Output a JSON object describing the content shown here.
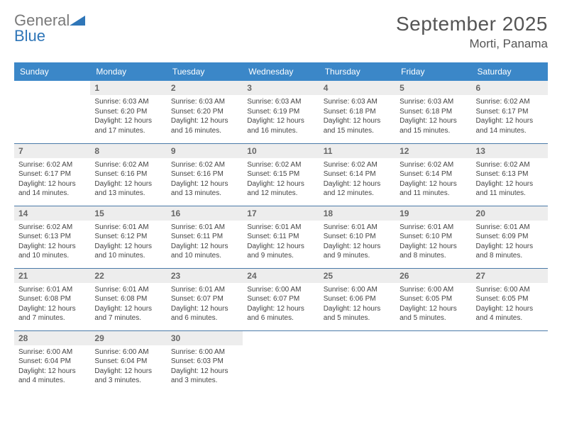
{
  "brand": {
    "name1": "General",
    "name2": "Blue"
  },
  "title": "September 2025",
  "location": "Morti, Panama",
  "colors": {
    "header_bg": "#3b87c8",
    "header_text": "#ffffff",
    "daynum_bg": "#ededed",
    "daynum_text": "#666666",
    "row_divider": "#4a7aa8",
    "brand_gray": "#7a7a7a",
    "brand_blue": "#2f76b8",
    "page_bg": "#ffffff",
    "body_text": "#444444"
  },
  "fonts": {
    "body_family": "Arial",
    "title_size_pt": 21,
    "location_size_pt": 13,
    "th_size_pt": 9,
    "daynum_size_pt": 9,
    "cell_size_pt": 7.5
  },
  "day_names": [
    "Sunday",
    "Monday",
    "Tuesday",
    "Wednesday",
    "Thursday",
    "Friday",
    "Saturday"
  ],
  "weeks": [
    [
      null,
      {
        "n": "1",
        "sr": "Sunrise: 6:03 AM",
        "ss": "Sunset: 6:20 PM",
        "dl": "Daylight: 12 hours and 17 minutes."
      },
      {
        "n": "2",
        "sr": "Sunrise: 6:03 AM",
        "ss": "Sunset: 6:20 PM",
        "dl": "Daylight: 12 hours and 16 minutes."
      },
      {
        "n": "3",
        "sr": "Sunrise: 6:03 AM",
        "ss": "Sunset: 6:19 PM",
        "dl": "Daylight: 12 hours and 16 minutes."
      },
      {
        "n": "4",
        "sr": "Sunrise: 6:03 AM",
        "ss": "Sunset: 6:18 PM",
        "dl": "Daylight: 12 hours and 15 minutes."
      },
      {
        "n": "5",
        "sr": "Sunrise: 6:03 AM",
        "ss": "Sunset: 6:18 PM",
        "dl": "Daylight: 12 hours and 15 minutes."
      },
      {
        "n": "6",
        "sr": "Sunrise: 6:02 AM",
        "ss": "Sunset: 6:17 PM",
        "dl": "Daylight: 12 hours and 14 minutes."
      }
    ],
    [
      {
        "n": "7",
        "sr": "Sunrise: 6:02 AM",
        "ss": "Sunset: 6:17 PM",
        "dl": "Daylight: 12 hours and 14 minutes."
      },
      {
        "n": "8",
        "sr": "Sunrise: 6:02 AM",
        "ss": "Sunset: 6:16 PM",
        "dl": "Daylight: 12 hours and 13 minutes."
      },
      {
        "n": "9",
        "sr": "Sunrise: 6:02 AM",
        "ss": "Sunset: 6:16 PM",
        "dl": "Daylight: 12 hours and 13 minutes."
      },
      {
        "n": "10",
        "sr": "Sunrise: 6:02 AM",
        "ss": "Sunset: 6:15 PM",
        "dl": "Daylight: 12 hours and 12 minutes."
      },
      {
        "n": "11",
        "sr": "Sunrise: 6:02 AM",
        "ss": "Sunset: 6:14 PM",
        "dl": "Daylight: 12 hours and 12 minutes."
      },
      {
        "n": "12",
        "sr": "Sunrise: 6:02 AM",
        "ss": "Sunset: 6:14 PM",
        "dl": "Daylight: 12 hours and 11 minutes."
      },
      {
        "n": "13",
        "sr": "Sunrise: 6:02 AM",
        "ss": "Sunset: 6:13 PM",
        "dl": "Daylight: 12 hours and 11 minutes."
      }
    ],
    [
      {
        "n": "14",
        "sr": "Sunrise: 6:02 AM",
        "ss": "Sunset: 6:13 PM",
        "dl": "Daylight: 12 hours and 10 minutes."
      },
      {
        "n": "15",
        "sr": "Sunrise: 6:01 AM",
        "ss": "Sunset: 6:12 PM",
        "dl": "Daylight: 12 hours and 10 minutes."
      },
      {
        "n": "16",
        "sr": "Sunrise: 6:01 AM",
        "ss": "Sunset: 6:11 PM",
        "dl": "Daylight: 12 hours and 10 minutes."
      },
      {
        "n": "17",
        "sr": "Sunrise: 6:01 AM",
        "ss": "Sunset: 6:11 PM",
        "dl": "Daylight: 12 hours and 9 minutes."
      },
      {
        "n": "18",
        "sr": "Sunrise: 6:01 AM",
        "ss": "Sunset: 6:10 PM",
        "dl": "Daylight: 12 hours and 9 minutes."
      },
      {
        "n": "19",
        "sr": "Sunrise: 6:01 AM",
        "ss": "Sunset: 6:10 PM",
        "dl": "Daylight: 12 hours and 8 minutes."
      },
      {
        "n": "20",
        "sr": "Sunrise: 6:01 AM",
        "ss": "Sunset: 6:09 PM",
        "dl": "Daylight: 12 hours and 8 minutes."
      }
    ],
    [
      {
        "n": "21",
        "sr": "Sunrise: 6:01 AM",
        "ss": "Sunset: 6:08 PM",
        "dl": "Daylight: 12 hours and 7 minutes."
      },
      {
        "n": "22",
        "sr": "Sunrise: 6:01 AM",
        "ss": "Sunset: 6:08 PM",
        "dl": "Daylight: 12 hours and 7 minutes."
      },
      {
        "n": "23",
        "sr": "Sunrise: 6:01 AM",
        "ss": "Sunset: 6:07 PM",
        "dl": "Daylight: 12 hours and 6 minutes."
      },
      {
        "n": "24",
        "sr": "Sunrise: 6:00 AM",
        "ss": "Sunset: 6:07 PM",
        "dl": "Daylight: 12 hours and 6 minutes."
      },
      {
        "n": "25",
        "sr": "Sunrise: 6:00 AM",
        "ss": "Sunset: 6:06 PM",
        "dl": "Daylight: 12 hours and 5 minutes."
      },
      {
        "n": "26",
        "sr": "Sunrise: 6:00 AM",
        "ss": "Sunset: 6:05 PM",
        "dl": "Daylight: 12 hours and 5 minutes."
      },
      {
        "n": "27",
        "sr": "Sunrise: 6:00 AM",
        "ss": "Sunset: 6:05 PM",
        "dl": "Daylight: 12 hours and 4 minutes."
      }
    ],
    [
      {
        "n": "28",
        "sr": "Sunrise: 6:00 AM",
        "ss": "Sunset: 6:04 PM",
        "dl": "Daylight: 12 hours and 4 minutes."
      },
      {
        "n": "29",
        "sr": "Sunrise: 6:00 AM",
        "ss": "Sunset: 6:04 PM",
        "dl": "Daylight: 12 hours and 3 minutes."
      },
      {
        "n": "30",
        "sr": "Sunrise: 6:00 AM",
        "ss": "Sunset: 6:03 PM",
        "dl": "Daylight: 12 hours and 3 minutes."
      },
      null,
      null,
      null,
      null
    ]
  ]
}
